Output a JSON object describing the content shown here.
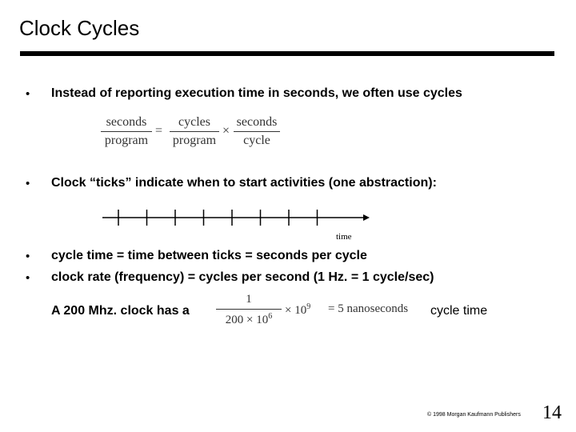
{
  "slide": {
    "title": "Clock Cycles",
    "bullet_symbol": "•",
    "bullets": [
      "Instead of reporting execution time in seconds, we often use cycles",
      "Clock “ticks” indicate when to start activities (one abstraction):",
      "cycle time = time between ticks = seconds per cycle",
      "clock rate (frequency) = cycles per second  (1 Hz. = 1 cycle/sec)"
    ],
    "equation": {
      "lhs_num": "seconds",
      "lhs_den": "program",
      "eq": "=",
      "mid_num": "cycles",
      "mid_den": "program",
      "times": "×",
      "rhs_num": "seconds",
      "rhs_den": "cycle"
    },
    "timeline_label": "time",
    "example": {
      "prefix": "A 200 Mhz. clock has a",
      "num": "1",
      "den_base": "200 × 10",
      "den_exp": "6",
      "times": "× 10",
      "times_exp": "9",
      "result": "= 5 nanoseconds",
      "suffix": "cycle time"
    },
    "footer": "© 1998 Morgan Kaufmann Publishers",
    "page_number": "14"
  }
}
